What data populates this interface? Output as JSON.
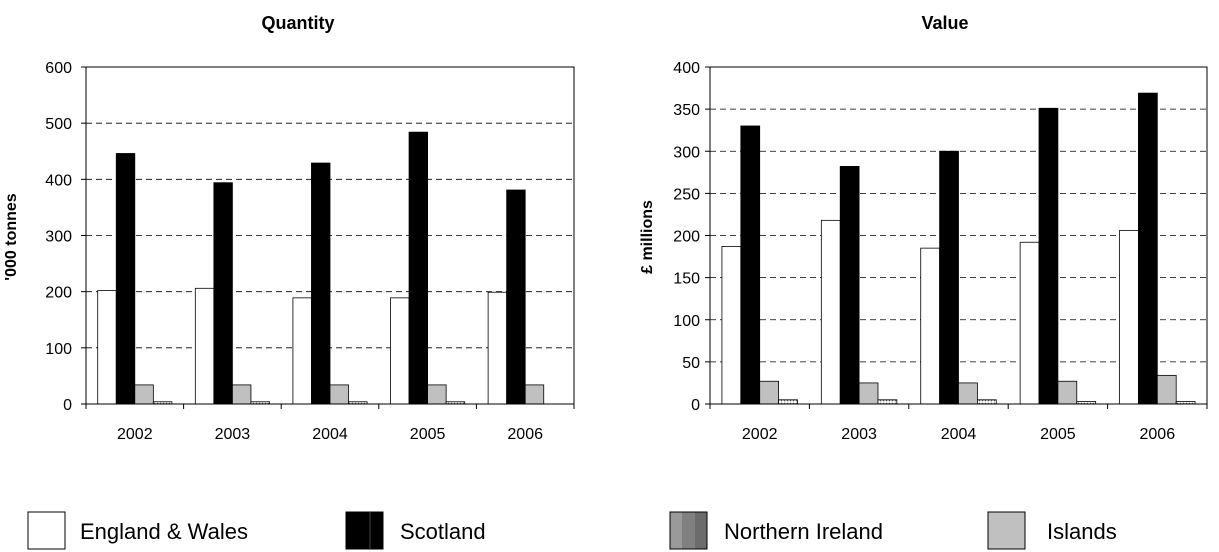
{
  "chart_data": [
    {
      "type": "bar",
      "title": "Quantity",
      "xlabel": "",
      "ylabel": "'000 tonnes",
      "ylim": [
        0,
        600
      ],
      "yticks": [
        "0",
        "100",
        "200",
        "300",
        "400",
        "500",
        "600"
      ],
      "grid": "horizontal dashed",
      "categories": [
        "2002",
        "2003",
        "2004",
        "2005",
        "2006"
      ],
      "series": [
        {
          "name": "England & Wales",
          "values": [
            202,
            206,
            189,
            189,
            199
          ]
        },
        {
          "name": "Scotland",
          "values": [
            446,
            394,
            429,
            484,
            381
          ]
        },
        {
          "name": "Islands",
          "values": [
            34,
            34,
            34,
            34,
            34
          ]
        },
        {
          "name": "Northern Ireland",
          "values": [
            4,
            4,
            4,
            4,
            0
          ]
        }
      ]
    },
    {
      "type": "bar",
      "title": "Value",
      "xlabel": "",
      "ylabel": "£ millions",
      "ylim": [
        0,
        400
      ],
      "yticks": [
        "0",
        "50",
        "100",
        "150",
        "200",
        "250",
        "300",
        "350",
        "400"
      ],
      "grid": "horizontal dashed",
      "categories": [
        "2002",
        "2003",
        "2004",
        "2005",
        "2006"
      ],
      "series": [
        {
          "name": "England & Wales",
          "values": [
            187,
            218,
            185,
            192,
            206
          ]
        },
        {
          "name": "Scotland",
          "values": [
            330,
            282,
            300,
            351,
            369
          ]
        },
        {
          "name": "Islands",
          "values": [
            27,
            25,
            25,
            27,
            34
          ]
        },
        {
          "name": "Northern Ireland",
          "values": [
            5,
            5,
            5,
            3,
            3
          ]
        }
      ]
    }
  ],
  "legend": {
    "placement": "bottom",
    "items": [
      {
        "label": "England & Wales",
        "color": "#ffffff"
      },
      {
        "label": "Scotland",
        "color": "#000000"
      },
      {
        "label": "Northern Ireland",
        "color": "#808080"
      },
      {
        "label": "Islands",
        "color": "#c0c0c0"
      }
    ]
  },
  "colors": {
    "England & Wales": "#ffffff",
    "Scotland": "#000000",
    "Islands": "#c0c0c0",
    "Northern Ireland": "#808080"
  }
}
